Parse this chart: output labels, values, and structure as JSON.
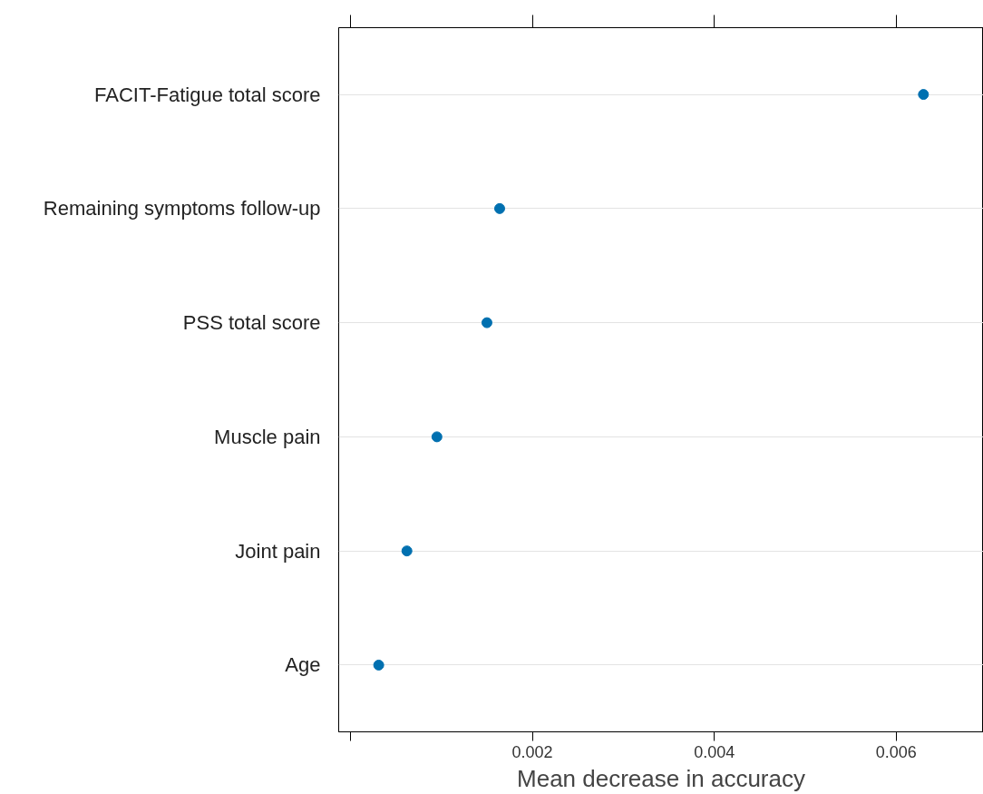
{
  "chart_data": {
    "type": "scatter",
    "orientation": "horizontal",
    "xlabel": "Mean decrease in accuracy",
    "categories": [
      "FACIT-Fatigue total score",
      "Remaining symptoms follow-up",
      "PSS total score",
      "Muscle pain",
      "Joint pain",
      "Age"
    ],
    "series": [
      {
        "color": "#0070b0",
        "values": [
          0.0063,
          0.00164,
          0.0015,
          0.00095,
          0.00062,
          0.00031
        ]
      }
    ],
    "xlim": [
      -0.00013,
      0.00696
    ],
    "xticks": [
      {
        "value": 0,
        "label": null
      },
      {
        "value": 0.002,
        "label": "0.002"
      },
      {
        "value": 0.004,
        "label": "0.004"
      },
      {
        "value": 0.006,
        "label": "0.006"
      }
    ],
    "grid": "y",
    "marker": "circle"
  }
}
